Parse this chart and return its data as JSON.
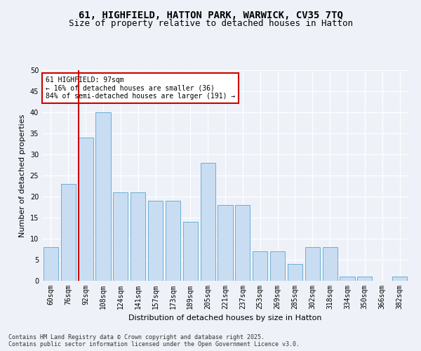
{
  "title1": "61, HIGHFIELD, HATTON PARK, WARWICK, CV35 7TQ",
  "title2": "Size of property relative to detached houses in Hatton",
  "xlabel": "Distribution of detached houses by size in Hatton",
  "ylabel": "Number of detached properties",
  "bar_labels": [
    "60sqm",
    "76sqm",
    "92sqm",
    "108sqm",
    "124sqm",
    "141sqm",
    "157sqm",
    "173sqm",
    "189sqm",
    "205sqm",
    "221sqm",
    "237sqm",
    "253sqm",
    "269sqm",
    "285sqm",
    "302sqm",
    "318sqm",
    "334sqm",
    "350sqm",
    "366sqm",
    "382sqm"
  ],
  "bar_values": [
    8,
    23,
    34,
    40,
    21,
    21,
    19,
    19,
    14,
    28,
    18,
    18,
    7,
    7,
    4,
    8,
    8,
    1,
    1,
    0,
    1
  ],
  "bar_color": "#c9ddf2",
  "bar_edge_color": "#6baed6",
  "vline_color": "#cc0000",
  "vline_index": 2,
  "annotation_title": "61 HIGHFIELD: 97sqm",
  "annotation_line1": "← 16% of detached houses are smaller (36)",
  "annotation_line2": "84% of semi-detached houses are larger (191) →",
  "annotation_box_facecolor": "#ffffff",
  "annotation_box_edgecolor": "#cc0000",
  "yticks": [
    0,
    5,
    10,
    15,
    20,
    25,
    30,
    35,
    40,
    45,
    50
  ],
  "ylim": [
    0,
    50
  ],
  "footer": "Contains HM Land Registry data © Crown copyright and database right 2025.\nContains public sector information licensed under the Open Government Licence v3.0.",
  "bg_color": "#eef2f8",
  "grid_color": "#ffffff",
  "title_fontsize": 10,
  "subtitle_fontsize": 9,
  "axis_label_fontsize": 8,
  "tick_fontsize": 7,
  "annotation_fontsize": 7,
  "footer_fontsize": 6
}
